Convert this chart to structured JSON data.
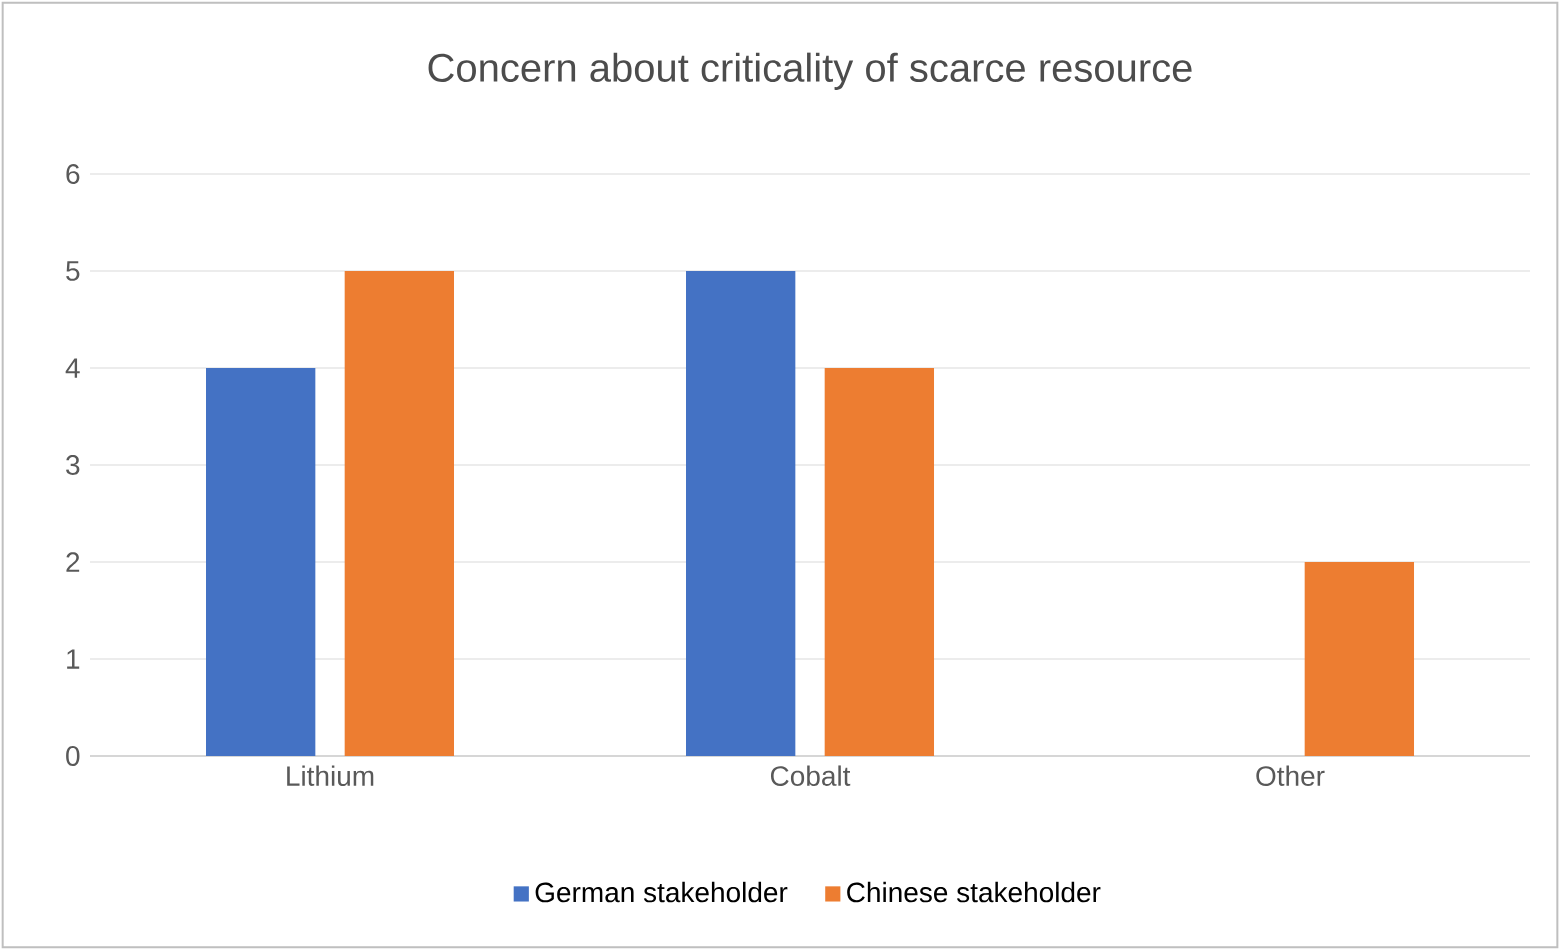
{
  "chart_data": {
    "type": "bar",
    "title": "Concern about criticality of scarce resource",
    "categories": [
      "Lithium",
      "Cobalt",
      "Other"
    ],
    "series": [
      {
        "name": "German stakeholder",
        "color": "#4472c4",
        "values": [
          4,
          5,
          0
        ]
      },
      {
        "name": "Chinese stakeholder",
        "color": "#ed7d31",
        "values": [
          5,
          4,
          2
        ]
      }
    ],
    "ylim": [
      0,
      6
    ],
    "yticks": [
      0,
      1,
      2,
      3,
      4,
      5,
      6
    ],
    "grid": "y",
    "legend": "bottom"
  }
}
